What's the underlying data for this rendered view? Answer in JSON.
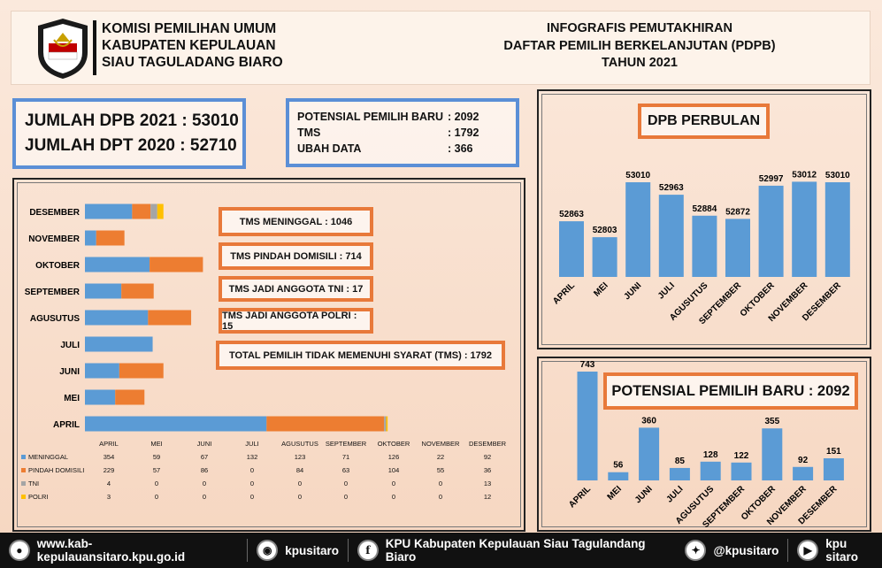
{
  "header": {
    "logo_text_top": "KOMISI",
    "logo_text_bottom": "PEMILIHAN UMUM",
    "org_lines": [
      "KOMISI PEMILIHAN UMUM",
      "KABUPATEN KEPULAUAN",
      "SIAU TAGULADANG BIARO"
    ],
    "title_lines": [
      "INFOGRAFIS PEMUTAKHIRAN",
      "DAFTAR PEMILIH BERKELANJUTAN (PDPB)",
      "TAHUN 2021"
    ]
  },
  "summary": {
    "dpb_2021": "JUMLAH DPB 2021 : 53010",
    "dpt_2020": "JUMLAH DPT 2020 : 52710"
  },
  "potensial": {
    "rows": [
      {
        "label": "POTENSIAL PEMILIH BARU",
        "value": ": 2092"
      },
      {
        "label": "TMS",
        "value": ": 1792"
      },
      {
        "label": "UBAH DATA",
        "value": ": 366"
      }
    ]
  },
  "tms_boxes": {
    "meninggal": "TMS MENINGGAL : 1046",
    "pindah": "TMS PINDAH DOMISILI : 714",
    "tni": "TMS JADI ANGGOTA TNI : 17",
    "polri": "TMS JADI ANGGOTA POLRI : 15",
    "total": "TOTAL PEMILIH TIDAK MEMENUHI SYARAT (TMS) : 1792"
  },
  "chart_titles": {
    "dpb": "DPB PERBULAN",
    "pemilih_baru": "POTENSIAL PEMILIH BARU : 2092"
  },
  "colors": {
    "blue": "#5b9bd5",
    "orange": "#ed7d31",
    "gray": "#a5a5a5",
    "yellow": "#ffc000",
    "accent_orange": "#e8793a"
  },
  "chart_data": [
    {
      "type": "bar",
      "orientation": "horizontal",
      "stacked": true,
      "categories": [
        "APRIL",
        "MEI",
        "JUNI",
        "JULI",
        "AGUSUTUS",
        "SEPTEMBER",
        "OKTOBER",
        "NOVEMBER",
        "DESEMBER"
      ],
      "series": [
        {
          "name": "MENINGGAL",
          "values": [
            354,
            59,
            67,
            132,
            123,
            71,
            126,
            22,
            92
          ]
        },
        {
          "name": "PINDAH DOMISILI",
          "values": [
            229,
            57,
            86,
            0,
            84,
            63,
            104,
            55,
            36
          ]
        },
        {
          "name": "TNI",
          "values": [
            4,
            0,
            0,
            0,
            0,
            0,
            0,
            0,
            13
          ]
        },
        {
          "name": "POLRI",
          "values": [
            3,
            0,
            0,
            0,
            0,
            0,
            0,
            0,
            12
          ]
        }
      ],
      "table_headers": [
        "APRIL",
        "MEI",
        "JUNI",
        "JULI",
        "AGUSUTUS",
        "SEPTEMBER",
        "OKTOBER",
        "NOVEMBER",
        "DESEMBER"
      ]
    },
    {
      "type": "bar",
      "title": "DPB PERBULAN",
      "categories": [
        "APRIL",
        "MEI",
        "JUNI",
        "JULI",
        "AGUSUTUS",
        "SEPTEMBER",
        "OKTOBER",
        "NOVEMBER",
        "DESEMBER"
      ],
      "values": [
        52863,
        52803,
        53010,
        52963,
        52884,
        52872,
        52997,
        53012,
        53010
      ],
      "ylim": [
        52700,
        53060
      ]
    },
    {
      "type": "bar",
      "title": "POTENSIAL PEMILIH BARU : 2092",
      "categories": [
        "APRIL",
        "MEI",
        "JUNI",
        "JULI",
        "AGUSUTUS",
        "SEPTEMBER",
        "OKTOBER",
        "NOVEMBER",
        "DESEMBER"
      ],
      "values": [
        743,
        56,
        360,
        85,
        128,
        122,
        355,
        92,
        151
      ],
      "ylim": [
        0,
        743
      ]
    }
  ],
  "footer": {
    "website": "www.kab-kepulauansitaro.kpu.go.id",
    "instagram": "kpusitaro",
    "facebook": "KPU Kabupaten Kepulauan Siau Tagulandang Biaro",
    "twitter": "@kpusitaro",
    "youtube": "kpu sitaro"
  }
}
